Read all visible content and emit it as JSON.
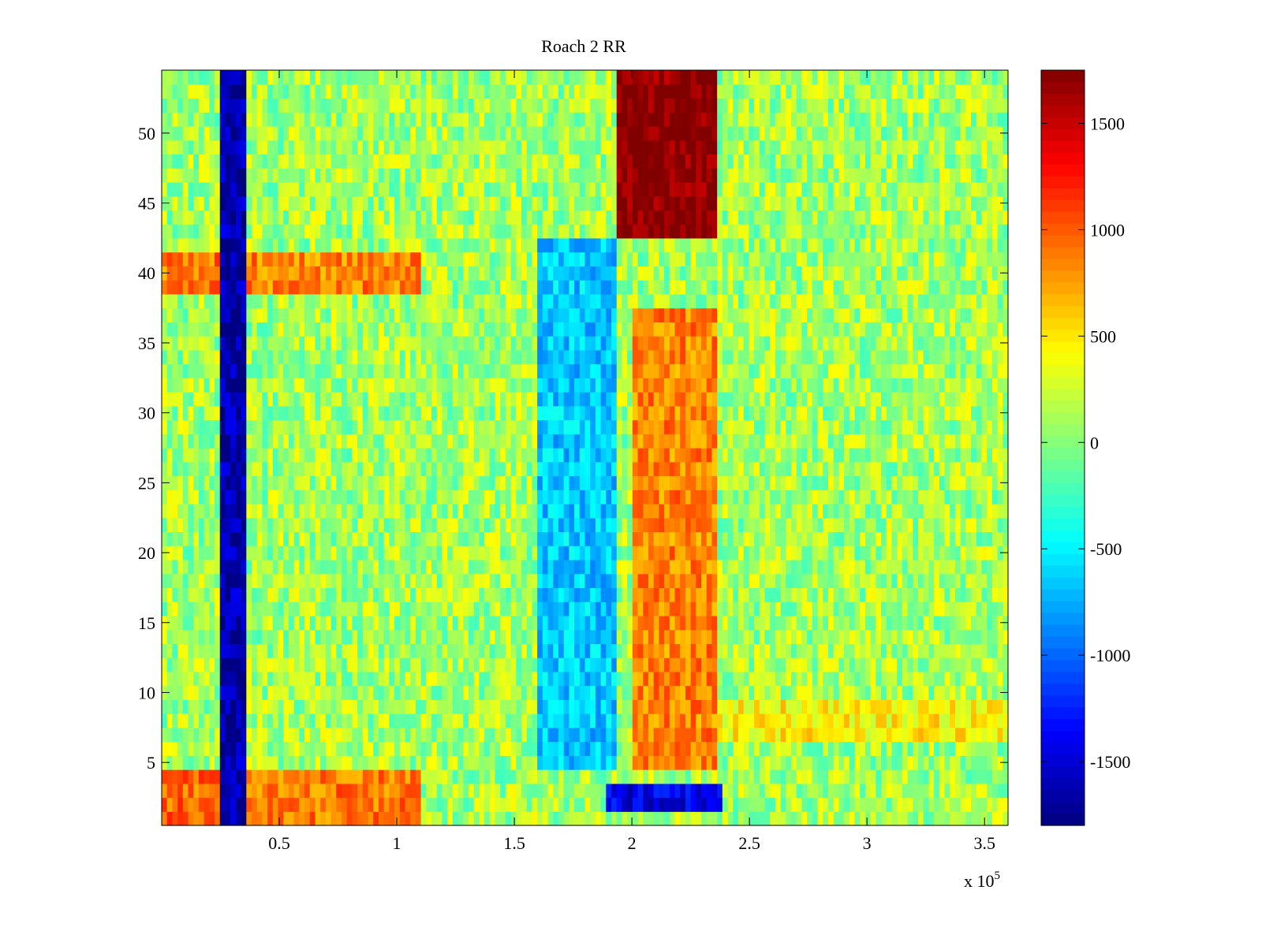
{
  "chart_data": {
    "type": "heatmap",
    "title": "Roach 2 RR",
    "xlabel": "",
    "ylabel": "",
    "x_exponent_label": "x 10",
    "x_exponent_power": "5",
    "xlim": [
      0,
      3.6
    ],
    "ylim": [
      0.5,
      54.5
    ],
    "grid": false,
    "x_ticks": [
      0.5,
      1,
      1.5,
      2,
      2.5,
      3,
      3.5
    ],
    "x_tick_labels": [
      "0.5",
      "1",
      "1.5",
      "2",
      "2.5",
      "3",
      "3.5"
    ],
    "y_ticks": [
      5,
      10,
      15,
      20,
      25,
      30,
      35,
      40,
      45,
      50
    ],
    "y_tick_labels": [
      "5",
      "10",
      "15",
      "20",
      "25",
      "30",
      "35",
      "40",
      "45",
      "50"
    ],
    "rows": 54,
    "colorbar": {
      "colormap": "jet",
      "clim": [
        -1800,
        1750
      ],
      "ticks": [
        1500,
        1000,
        500,
        0,
        -500,
        -1000,
        -1500
      ],
      "tick_labels": [
        "1500",
        "1000",
        "500",
        "0",
        "-500",
        "-1000",
        "-1500"
      ]
    },
    "baseline_value": 100,
    "regions": [
      {
        "name": "early strong negative band",
        "x": [
          0.24,
          0.35
        ],
        "y": [
          1,
          54
        ],
        "value": -1650
      },
      {
        "name": "late strong positive block",
        "x": [
          1.93,
          2.37
        ],
        "y": [
          43,
          54
        ],
        "value": 1750
      },
      {
        "name": "positive band",
        "x": [
          2.0,
          2.37
        ],
        "y": [
          5,
          37
        ],
        "value": 850
      },
      {
        "name": "mid negative band",
        "x": [
          1.6,
          1.93
        ],
        "y": [
          5,
          42
        ],
        "value": -650
      },
      {
        "name": "row 39-41 positive stripe",
        "x": [
          0,
          0.24
        ],
        "y": [
          39,
          41
        ],
        "value": 900
      },
      {
        "name": "row 39-41 positive stripe (right)",
        "x": [
          0.35,
          1.1
        ],
        "y": [
          39,
          41
        ],
        "value": 850
      },
      {
        "name": "rows 1-4 positive stripe",
        "x": [
          0,
          0.24
        ],
        "y": [
          1,
          4
        ],
        "value": 950
      },
      {
        "name": "rows 1-4 positive stripe (right)",
        "x": [
          0.35,
          1.1
        ],
        "y": [
          1,
          4
        ],
        "value": 900
      },
      {
        "name": "rows 2-3 negative stripe",
        "x": [
          1.88,
          2.38
        ],
        "y": [
          2,
          3
        ],
        "value": -1450
      },
      {
        "name": "row 8 positive stripe",
        "x": [
          2.37,
          3.6
        ],
        "y": [
          7,
          9
        ],
        "value": 450
      }
    ]
  }
}
